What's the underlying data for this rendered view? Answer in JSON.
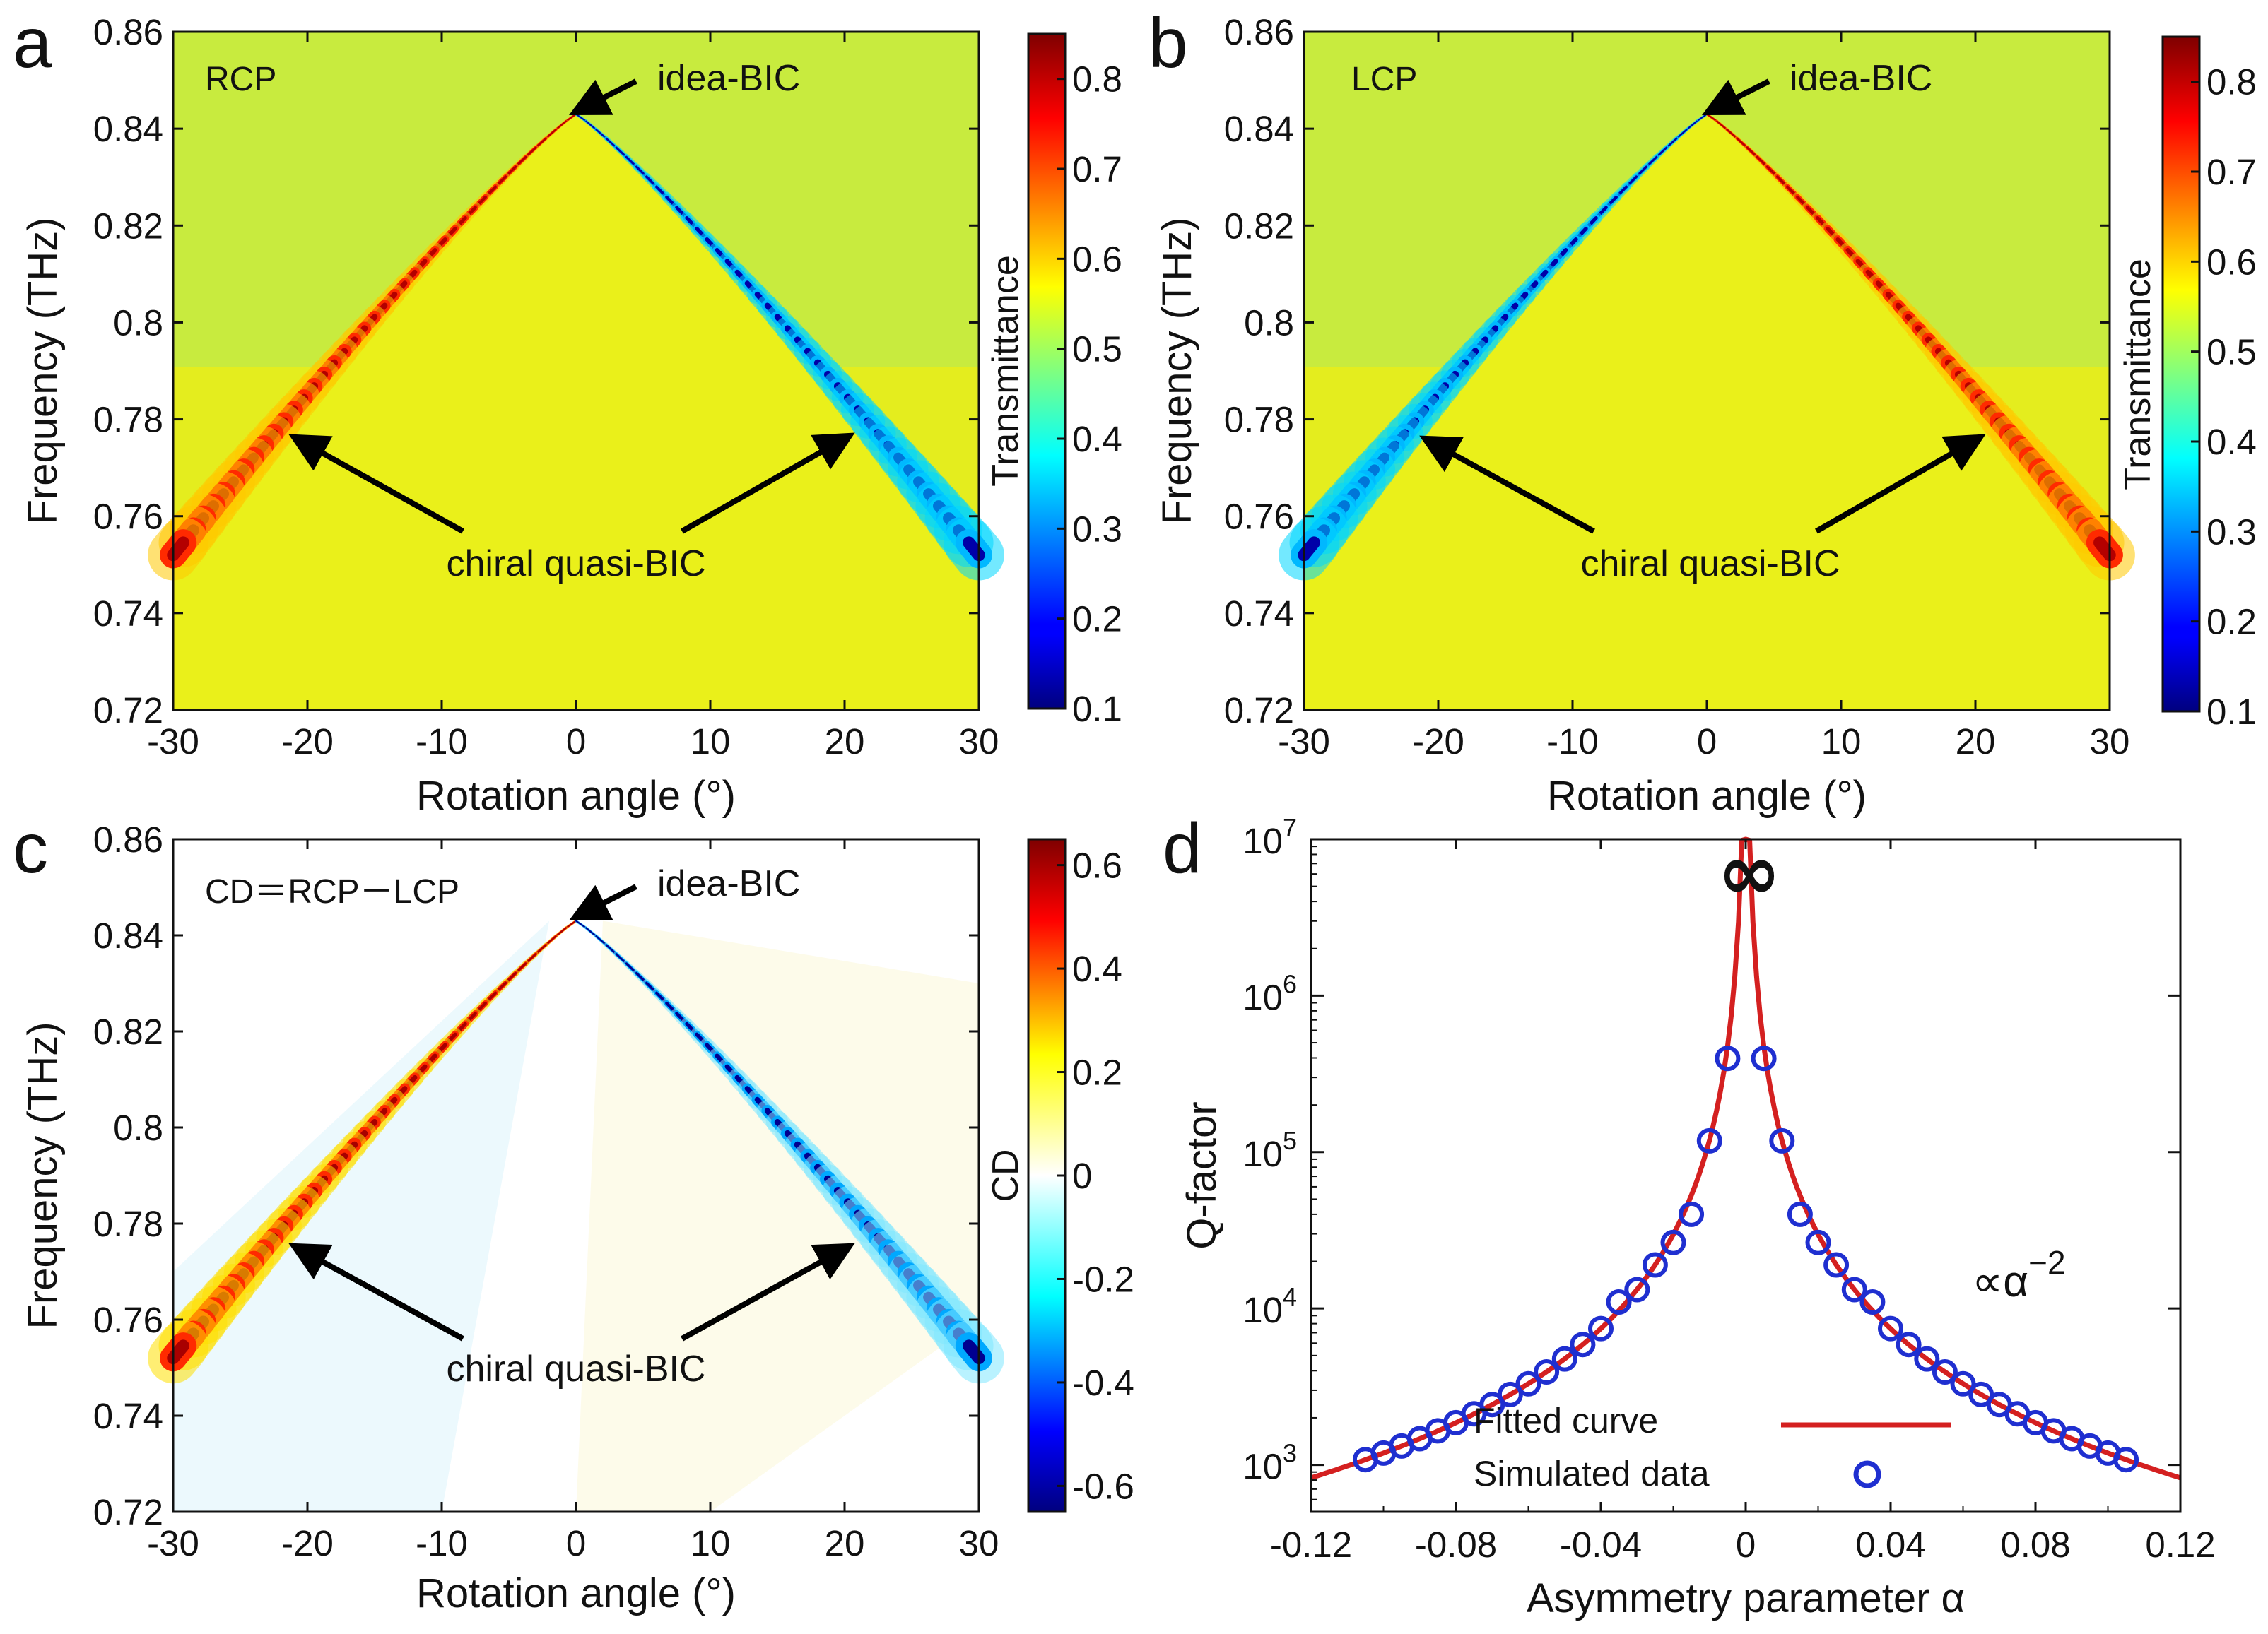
{
  "colors": {
    "line_red": "#d42020",
    "marker_blue": "#1f2fd0",
    "arrow": "#000000"
  },
  "chart_data": [
    {
      "id": "a",
      "type": "heatmap",
      "panel_label": "a",
      "polarization": "RCP",
      "xlabel": "Rotation angle (°)",
      "ylabel": "Frequency (THz)",
      "xlim": [
        -30,
        30
      ],
      "ylim": [
        0.72,
        0.86
      ],
      "xticks": [
        "-30",
        "-20",
        "-10",
        "0",
        "10",
        "20",
        "30"
      ],
      "yticks": [
        "0.72",
        "0.74",
        "0.76",
        "0.78",
        "0.8",
        "0.82",
        "0.84",
        "0.86"
      ],
      "colorbar": {
        "label": "Transmittance",
        "range": [
          0.1,
          0.85
        ],
        "ticks": [
          "0.1",
          "0.2",
          "0.3",
          "0.4",
          "0.5",
          "0.6",
          "0.7",
          "0.8"
        ]
      },
      "peak": {
        "angle": 0,
        "frequency": 0.843
      },
      "band_edge_frequency_at_30deg": 0.752,
      "left_branch": "high transmittance (red)",
      "right_branch": "low transmittance (blue)",
      "annotations": {
        "bic": "idea-BIC",
        "qbic": "chiral quasi-BIC"
      }
    },
    {
      "id": "b",
      "type": "heatmap",
      "panel_label": "b",
      "polarization": "LCP",
      "xlabel": "Rotation angle (°)",
      "ylabel": "Frequency (THz)",
      "xlim": [
        -30,
        30
      ],
      "ylim": [
        0.72,
        0.86
      ],
      "xticks": [
        "-30",
        "-20",
        "-10",
        "0",
        "10",
        "20",
        "30"
      ],
      "yticks": [
        "0.72",
        "0.74",
        "0.76",
        "0.78",
        "0.8",
        "0.82",
        "0.84",
        "0.86"
      ],
      "colorbar": {
        "label": "Transmittance",
        "range": [
          0.1,
          0.85
        ],
        "ticks": [
          "0.1",
          "0.2",
          "0.3",
          "0.4",
          "0.5",
          "0.6",
          "0.7",
          "0.8"
        ]
      },
      "peak": {
        "angle": 0,
        "frequency": 0.843
      },
      "band_edge_frequency_at_30deg": 0.752,
      "left_branch": "low transmittance (blue)",
      "right_branch": "high transmittance (red)",
      "annotations": {
        "bic": "idea-BIC",
        "qbic": "chiral quasi-BIC"
      }
    },
    {
      "id": "c",
      "type": "heatmap",
      "panel_label": "c",
      "polarization": "CD＝RCP－LCP",
      "xlabel": "Rotation angle (°)",
      "ylabel": "Frequency (THz)",
      "xlim": [
        -30,
        30
      ],
      "ylim": [
        0.72,
        0.86
      ],
      "xticks": [
        "-30",
        "-20",
        "-10",
        "0",
        "10",
        "20",
        "30"
      ],
      "yticks": [
        "0.72",
        "0.74",
        "0.76",
        "0.78",
        "0.8",
        "0.82",
        "0.84",
        "0.86"
      ],
      "colorbar": {
        "label": "CD",
        "range": [
          -0.65,
          0.65
        ],
        "ticks": [
          "-0.6",
          "-0.4",
          "-0.2",
          "0",
          "0.2",
          "0.4",
          "0.6"
        ]
      },
      "peak": {
        "angle": 0,
        "frequency": 0.843
      },
      "band_edge_frequency_at_30deg": 0.752,
      "left_branch": "positive CD (red)",
      "right_branch": "negative CD (blue)",
      "annotations": {
        "bic": "idea-BIC",
        "qbic": "chiral quasi-BIC"
      }
    },
    {
      "id": "d",
      "type": "scatter",
      "panel_label": "d",
      "xlabel": "Asymmetry parameter α",
      "ylabel": "Q-factor",
      "xlim": [
        -0.12,
        0.12
      ],
      "ylim_log10": [
        2.7,
        7
      ],
      "yscale": "log",
      "xticks": [
        "-0.12",
        "-0.08",
        "-0.04",
        "0",
        "0.04",
        "0.08",
        "0.12"
      ],
      "yticks": [
        {
          "base": "10",
          "exp": "3"
        },
        {
          "base": "10",
          "exp": "4"
        },
        {
          "base": "10",
          "exp": "5"
        },
        {
          "base": "10",
          "exp": "6"
        },
        {
          "base": "10",
          "exp": "7"
        }
      ],
      "infinity_label": "∞",
      "scaling_label": {
        "text": "∝α",
        "exp": "−2"
      },
      "fit": {
        "model": "Q = A·α^-2",
        "A": 11.9
      },
      "series": [
        {
          "name": "Fitted curve",
          "kind": "line"
        },
        {
          "name": "Simulated data",
          "kind": "markers",
          "x": [
            -0.105,
            -0.1,
            -0.095,
            -0.09,
            -0.085,
            -0.08,
            -0.075,
            -0.07,
            -0.065,
            -0.06,
            -0.055,
            -0.05,
            -0.045,
            -0.04,
            -0.035,
            -0.03,
            -0.025,
            -0.02,
            -0.015,
            -0.01,
            -0.005,
            0.005,
            0.01,
            0.015,
            0.02,
            0.025,
            0.03,
            0.035,
            0.04,
            0.045,
            0.05,
            0.055,
            0.06,
            0.065,
            0.07,
            0.075,
            0.08,
            0.085,
            0.09,
            0.095,
            0.1,
            0.105
          ],
          "y": [
            1080,
            1190,
            1320,
            1470,
            1650,
            1860,
            2120,
            2430,
            2820,
            3300,
            3930,
            4760,
            5880,
            7440,
            11000,
            13200,
            19000,
            26400,
            40000,
            118000,
            397000,
            397000,
            118000,
            40000,
            26400,
            19000,
            13200,
            11000,
            7440,
            5880,
            4760,
            3930,
            3300,
            2820,
            2430,
            2120,
            1860,
            1650,
            1470,
            1320,
            1190,
            1080
          ]
        }
      ]
    }
  ]
}
